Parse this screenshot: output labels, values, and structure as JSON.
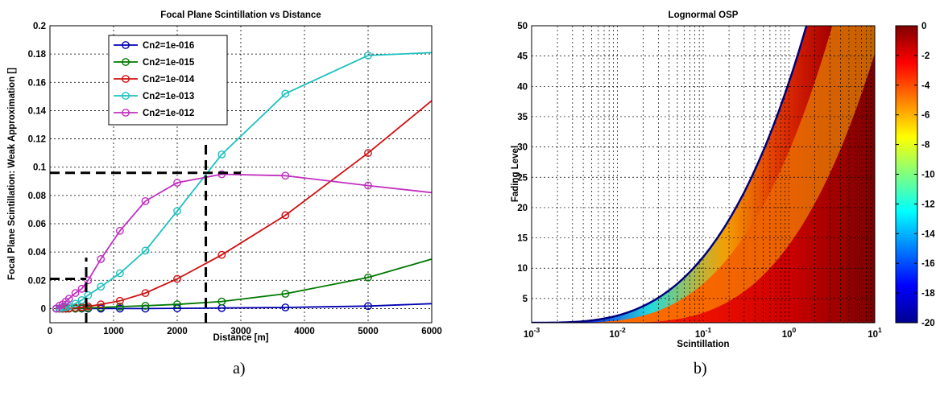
{
  "captions": {
    "left": "a)",
    "right": "b)"
  },
  "chart_data": [
    {
      "type": "line",
      "title": "Focal Plane Scintillation vs Distance",
      "xlabel": "Distance [m]",
      "ylabel": "Focal Plane Scintillation: Weak Approximation []",
      "xlim": [
        0,
        6000
      ],
      "ylim": [
        -0.01,
        0.2
      ],
      "xticks": [
        0,
        1000,
        2000,
        3000,
        4000,
        5000,
        6000
      ],
      "yticks": [
        0,
        0.02,
        0.04,
        0.06,
        0.08,
        0.1,
        0.12,
        0.14,
        0.16,
        0.18,
        0.2
      ],
      "grid": true,
      "legend_position": "top-left",
      "series": [
        {
          "name": "Cn2=1e-016",
          "color": "#0000b0",
          "x": [
            100,
            150,
            200,
            250,
            300,
            400,
            500,
            600,
            800,
            1100,
            1500,
            2000,
            2700,
            3700,
            5000,
            6000
          ],
          "y": [
            0,
            0,
            0,
            0,
            0,
            0,
            0,
            0,
            0,
            0,
            0,
            0.0002,
            0.0004,
            0.0008,
            0.0018,
            0.0035
          ],
          "markers_x": [
            100,
            150,
            200,
            250,
            300,
            400,
            500,
            600,
            800,
            1100,
            1500,
            2000,
            2700,
            3700,
            5000
          ]
        },
        {
          "name": "Cn2=1e-015",
          "color": "#007800",
          "x": [
            100,
            150,
            200,
            250,
            300,
            400,
            500,
            600,
            800,
            1100,
            1500,
            2000,
            2700,
            3700,
            5000,
            6000
          ],
          "y": [
            0,
            0,
            0,
            0,
            0,
            0,
            0.0002,
            0.0004,
            0.0008,
            0.0014,
            0.002,
            0.003,
            0.005,
            0.0105,
            0.022,
            0.035
          ],
          "markers_x": [
            100,
            150,
            200,
            250,
            300,
            400,
            500,
            600,
            800,
            1100,
            1500,
            2000,
            2700,
            3700,
            5000
          ]
        },
        {
          "name": "Cn2=1e-014",
          "color": "#d01010",
          "x": [
            100,
            150,
            200,
            250,
            300,
            400,
            500,
            600,
            800,
            1100,
            1500,
            2000,
            2700,
            3700,
            5000,
            6000
          ],
          "y": [
            0,
            0,
            0,
            0,
            0.0002,
            0.0006,
            0.001,
            0.0015,
            0.003,
            0.0055,
            0.011,
            0.021,
            0.038,
            0.066,
            0.11,
            0.147
          ],
          "markers_x": [
            100,
            150,
            200,
            250,
            300,
            400,
            500,
            600,
            800,
            1100,
            1500,
            2000,
            2700,
            3700,
            5000
          ]
        },
        {
          "name": "Cn2=1e-013",
          "color": "#20c0c0",
          "x": [
            100,
            150,
            200,
            250,
            300,
            400,
            500,
            600,
            800,
            1100,
            1500,
            2000,
            2700,
            3700,
            5000,
            6000
          ],
          "y": [
            0,
            0.0003,
            0.0006,
            0.001,
            0.0017,
            0.0035,
            0.006,
            0.0095,
            0.0155,
            0.025,
            0.041,
            0.069,
            0.109,
            0.152,
            0.179,
            0.181
          ],
          "markers_x": [
            100,
            150,
            200,
            250,
            300,
            400,
            500,
            600,
            800,
            1100,
            1500,
            2000,
            2700,
            3700,
            5000
          ]
        },
        {
          "name": "Cn2=1e-012",
          "color": "#c030c0",
          "x": [
            100,
            150,
            200,
            250,
            300,
            400,
            500,
            600,
            800,
            1100,
            1500,
            2000,
            2700,
            3700,
            5000,
            6000
          ],
          "y": [
            0,
            0.002,
            0.003,
            0.005,
            0.007,
            0.011,
            0.014,
            0.02,
            0.035,
            0.055,
            0.076,
            0.089,
            0.095,
            0.094,
            0.087,
            0.082
          ],
          "markers_x": [
            100,
            150,
            200,
            250,
            300,
            400,
            500,
            600,
            800,
            1100,
            1500,
            2000,
            2700,
            3700,
            5000
          ]
        }
      ],
      "reference_lines": [
        {
          "x": 570,
          "y": 0.021
        },
        {
          "x": 2450,
          "y": 0.096
        }
      ]
    },
    {
      "type": "heatmap",
      "title": "Lognormal OSP",
      "xlabel": "Scintillation",
      "ylabel": "Fading Level",
      "x_scale": "log",
      "xlim": [
        0.001,
        10
      ],
      "ylim": [
        1,
        50
      ],
      "xticks": [
        0.001,
        0.01,
        0.1,
        1,
        10
      ],
      "xtick_labels": [
        {
          "base": "10",
          "exp": "-3"
        },
        {
          "base": "10",
          "exp": "-2"
        },
        {
          "base": "10",
          "exp": "-1"
        },
        {
          "base": "10",
          "exp": "0"
        },
        {
          "base": "10",
          "exp": "1"
        }
      ],
      "yticks": [
        5,
        10,
        15,
        20,
        25,
        30,
        35,
        40,
        45,
        50
      ],
      "grid": true,
      "colormap": "jet",
      "colorbar": {
        "range": [
          -20,
          0
        ],
        "ticks": [
          0,
          -2,
          -4,
          -6,
          -8,
          -10,
          -12,
          -14,
          -16,
          -18,
          -20
        ]
      }
    }
  ]
}
